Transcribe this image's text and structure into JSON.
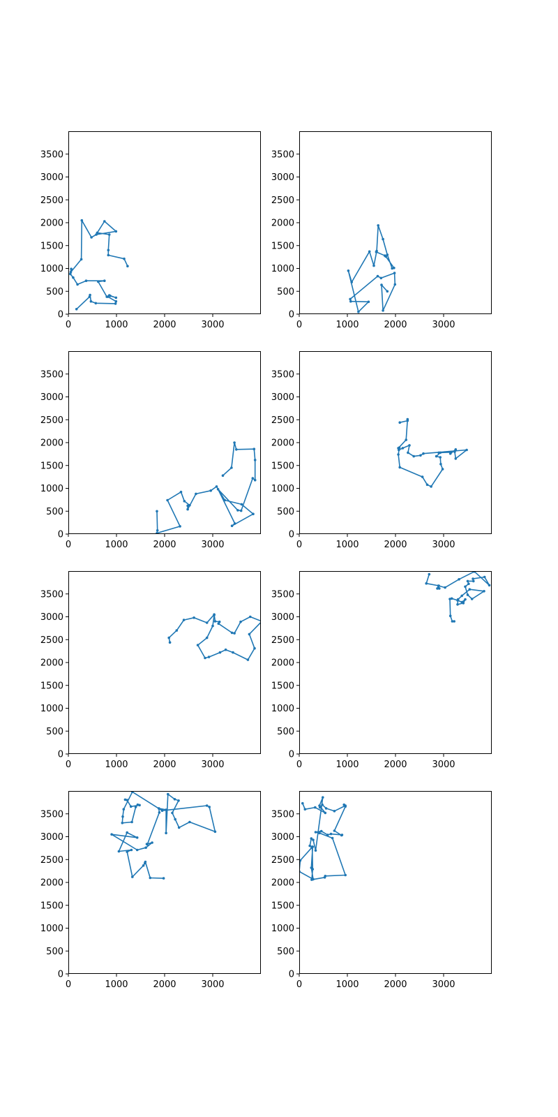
{
  "figure": {
    "layout": {
      "rows": 4,
      "cols": 2
    },
    "line_color": "#1f77b4",
    "axis_color": "#000000",
    "background": "#ffffff"
  },
  "chart_data": [
    {
      "type": "line",
      "marker": "point",
      "xlim": [
        0,
        4000
      ],
      "ylim": [
        0,
        4000
      ],
      "xticks": [
        0,
        1000,
        2000,
        3000
      ],
      "yticks": [
        0,
        500,
        1000,
        1500,
        2000,
        2500,
        3000,
        3500
      ],
      "x": [
        170,
        440,
        450,
        470,
        570,
        980,
        990,
        820,
        850,
        990,
        870,
        800,
        620,
        750,
        370,
        190,
        100,
        40,
        60,
        50,
        270,
        280,
        480,
        580,
        990,
        750,
        600,
        850,
        830,
        830,
        1160,
        1230
      ],
      "y": [
        110,
        380,
        420,
        280,
        240,
        230,
        280,
        380,
        410,
        360,
        400,
        380,
        710,
        730,
        730,
        650,
        800,
        880,
        990,
        920,
        1200,
        2050,
        1680,
        1740,
        1810,
        2030,
        1780,
        1740,
        1400,
        1290,
        1210,
        1050
      ]
    },
    {
      "type": "line",
      "marker": "point",
      "xlim": [
        0,
        4000
      ],
      "ylim": [
        0,
        4000
      ],
      "xticks": [
        0,
        1000,
        2000,
        3000
      ],
      "yticks": [
        0,
        500,
        1000,
        1500,
        2000,
        2500,
        3000,
        3500
      ],
      "x": [
        1830,
        1710,
        1740,
        1990,
        1980,
        1700,
        1630,
        1060,
        1070,
        1440,
        1230,
        1020,
        1090,
        1460,
        1550,
        1610,
        1640,
        1740,
        1830,
        1930,
        1970,
        1800,
        1780,
        1600
      ],
      "y": [
        500,
        640,
        80,
        650,
        900,
        790,
        830,
        330,
        280,
        270,
        50,
        950,
        700,
        1370,
        1060,
        1380,
        1940,
        1640,
        1300,
        1000,
        1010,
        1260,
        1280,
        1360
      ]
    },
    {
      "type": "line",
      "marker": "point",
      "xlim": [
        0,
        4000
      ],
      "ylim": [
        0,
        4000
      ],
      "xticks": [
        0,
        1000,
        2000,
        3000
      ],
      "yticks": [
        0,
        500,
        1000,
        1500,
        2000,
        2500,
        3000,
        3500
      ],
      "x": [
        1840,
        1850,
        1840,
        2320,
        2060,
        2340,
        2410,
        2520,
        2480,
        2480,
        2650,
        2960,
        3080,
        3250,
        3600,
        3840,
        3400,
        3460,
        3110,
        3520,
        3590,
        3830,
        3880,
        3880,
        3860,
        3490,
        3450,
        3390,
        3210
      ],
      "y": [
        500,
        80,
        20,
        170,
        740,
        920,
        720,
        630,
        620,
        540,
        880,
        950,
        1040,
        740,
        650,
        440,
        180,
        230,
        980,
        520,
        510,
        1220,
        1180,
        1620,
        1860,
        1850,
        2000,
        1450,
        1280
      ]
    },
    {
      "type": "line",
      "marker": "point",
      "xlim": [
        0,
        4000
      ],
      "ylim": [
        0,
        4000
      ],
      "xticks": [
        0,
        1000,
        2000,
        3000
      ],
      "yticks": [
        0,
        500,
        1000,
        1500,
        2000,
        2500,
        3000,
        3500
      ],
      "x": [
        2090,
        2250,
        2250,
        2220,
        2060,
        2070,
        2150,
        2290,
        2260,
        2380,
        2520,
        2580,
        3480,
        3250,
        3230,
        3250,
        3140,
        3160,
        2900,
        2930,
        2850,
        2930,
        2940,
        2980,
        2740,
        2660,
        2560,
        2090,
        2060,
        2080
      ],
      "y": [
        2440,
        2480,
        2510,
        2060,
        1880,
        1840,
        1880,
        1940,
        1780,
        1700,
        1720,
        1760,
        1840,
        1650,
        1800,
        1850,
        1760,
        1790,
        1780,
        1780,
        1700,
        1680,
        1530,
        1420,
        1040,
        1080,
        1250,
        1460,
        1740,
        1890
      ]
    },
    {
      "type": "line",
      "marker": "point",
      "xlim": [
        0,
        4000
      ],
      "ylim": [
        0,
        4000
      ],
      "xticks": [
        0,
        1000,
        2000,
        3000
      ],
      "yticks": [
        0,
        500,
        1000,
        1500,
        2000,
        2500,
        3000,
        3500
      ],
      "x": [
        2110,
        2090,
        2250,
        2400,
        2610,
        2880,
        3030,
        3050,
        3140,
        3120,
        3400,
        3450,
        3580,
        3780,
        4020,
        3760,
        3870,
        3730,
        3420,
        3270,
        3150,
        2920,
        2840,
        2690,
        2880,
        3000,
        3030
      ],
      "y": [
        2440,
        2540,
        2700,
        2930,
        2980,
        2870,
        3050,
        2900,
        2890,
        2850,
        2650,
        2640,
        2890,
        3000,
        2900,
        2620,
        2310,
        2060,
        2220,
        2280,
        2220,
        2120,
        2100,
        2380,
        2540,
        2800,
        3040
      ]
    },
    {
      "type": "line",
      "marker": "point",
      "xlim": [
        0,
        4000
      ],
      "ylim": [
        0,
        4000
      ],
      "xticks": [
        0,
        1000,
        2000,
        3000
      ],
      "yticks": [
        0,
        500,
        1000,
        1500,
        2000,
        2500,
        3000,
        3500
      ],
      "x": [
        3220,
        3180,
        3140,
        3130,
        3170,
        3290,
        3380,
        3450,
        3410,
        3290,
        3300,
        3380,
        3540,
        3840,
        3590,
        3500,
        3450,
        3520,
        3500,
        3620,
        3610,
        3850,
        3950,
        3640,
        3320,
        3030,
        2890,
        2910,
        2870,
        2900,
        2640,
        2700
      ],
      "y": [
        2900,
        2900,
        3020,
        3390,
        3400,
        3360,
        3320,
        3380,
        3300,
        3270,
        3380,
        3460,
        3600,
        3560,
        3390,
        3480,
        3660,
        3720,
        3780,
        3780,
        3830,
        3870,
        3690,
        3990,
        3820,
        3640,
        3680,
        3620,
        3620,
        3680,
        3730,
        3930
      ]
    },
    {
      "type": "line",
      "marker": "point",
      "xlim": [
        0,
        4000
      ],
      "ylim": [
        0,
        4000
      ],
      "xticks": [
        0,
        1000,
        2000,
        3000
      ],
      "yticks": [
        0,
        500,
        1000,
        1500,
        2000,
        2500,
        3000,
        3500
      ],
      "x": [
        1980,
        1700,
        1600,
        1590,
        1560,
        1330,
        1220,
        1310,
        1050,
        1220,
        1430,
        900,
        1430,
        1610,
        1740,
        1630,
        1640,
        1890,
        1880,
        2030,
        2030,
        2070,
        2210,
        2290,
        2160,
        2220,
        2300,
        2520,
        3050,
        2930,
        2880,
        1950,
        1330,
        1150,
        1130,
        1120,
        1320,
        1400,
        1440,
        1480,
        1300,
        1220,
        1180
      ],
      "y": [
        2090,
        2100,
        2450,
        2420,
        2370,
        2120,
        2670,
        2710,
        2680,
        3090,
        2980,
        3050,
        2710,
        2760,
        2870,
        2840,
        2830,
        3530,
        3620,
        3590,
        3080,
        3930,
        3820,
        3790,
        3520,
        3380,
        3200,
        3320,
        3110,
        3650,
        3680,
        3570,
        3980,
        3600,
        3440,
        3300,
        3320,
        3650,
        3700,
        3690,
        3660,
        3800,
        3810
      ]
    },
    {
      "type": "line",
      "marker": "point",
      "xlim": [
        0,
        4000
      ],
      "ylim": [
        0,
        4000
      ],
      "xticks": [
        0,
        1000,
        2000,
        3000
      ],
      "yticks": [
        0,
        500,
        1000,
        1500,
        2000,
        2500,
        3000,
        3500
      ],
      "x": [
        70,
        120,
        330,
        540,
        420,
        490,
        340,
        290,
        250,
        220,
        280,
        250,
        290,
        0,
        20,
        260,
        270,
        280,
        260,
        530,
        540,
        960,
        690,
        420,
        340,
        460,
        590,
        660,
        890,
        880,
        730,
        960,
        930,
        960,
        730,
        560,
        480,
        430
      ],
      "y": [
        3730,
        3600,
        3640,
        3520,
        3680,
        3860,
        2700,
        2930,
        2960,
        2800,
        2780,
        2320,
        2070,
        2240,
        2480,
        2760,
        2780,
        2290,
        2060,
        2110,
        2140,
        2160,
        2970,
        3080,
        3100,
        3120,
        3040,
        3060,
        3040,
        3030,
        3130,
        3660,
        3700,
        3680,
        3560,
        3620,
        3700,
        3640
      ]
    }
  ]
}
